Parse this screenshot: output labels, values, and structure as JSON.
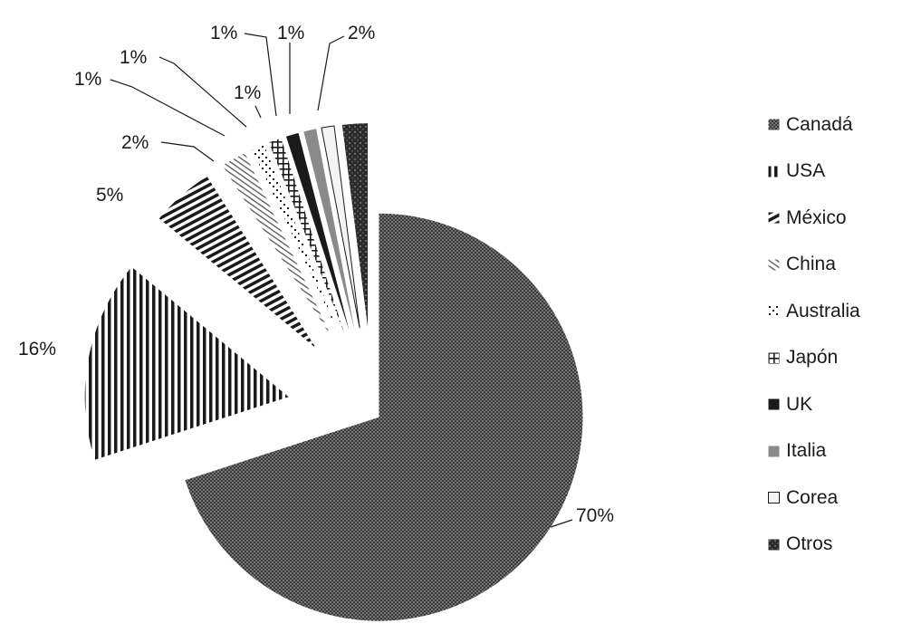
{
  "chart_data": {
    "type": "pie",
    "exploded": true,
    "start_angle_deg": 0,
    "direction": "clockwise",
    "slices": [
      {
        "name": "Canadá",
        "value": 70,
        "label": "70%",
        "pattern": "fine-dots"
      },
      {
        "name": "USA",
        "value": 16,
        "label": "16%",
        "pattern": "vertical-lines"
      },
      {
        "name": "México",
        "value": 5,
        "label": "5%",
        "pattern": "horizontal-lines"
      },
      {
        "name": "China",
        "value": 2,
        "label": "2%",
        "pattern": "diagonal-lines"
      },
      {
        "name": "Australia",
        "value": 1,
        "label": "1%",
        "pattern": "sparse-dots"
      },
      {
        "name": "Japón",
        "value": 1,
        "label": "1%",
        "pattern": "grid"
      },
      {
        "name": "UK",
        "value": 1,
        "label": "1%",
        "pattern": "solid-black"
      },
      {
        "name": "Italia",
        "value": 1,
        "label": "1%",
        "pattern": "solid-gray"
      },
      {
        "name": "Corea",
        "value": 1,
        "label": "1%",
        "pattern": "outline"
      },
      {
        "name": "Otros",
        "value": 2,
        "label": "2%",
        "pattern": "dark-dotted"
      }
    ],
    "legend_position": "right",
    "legend": [
      "Canadá",
      "USA",
      "México",
      "China",
      "Australia",
      "Japón",
      "UK",
      "Italia",
      "Corea",
      "Otros"
    ]
  },
  "colors": {
    "ink": "#1a1a1a",
    "gray": "#8a8a8a",
    "background": "#ffffff"
  }
}
